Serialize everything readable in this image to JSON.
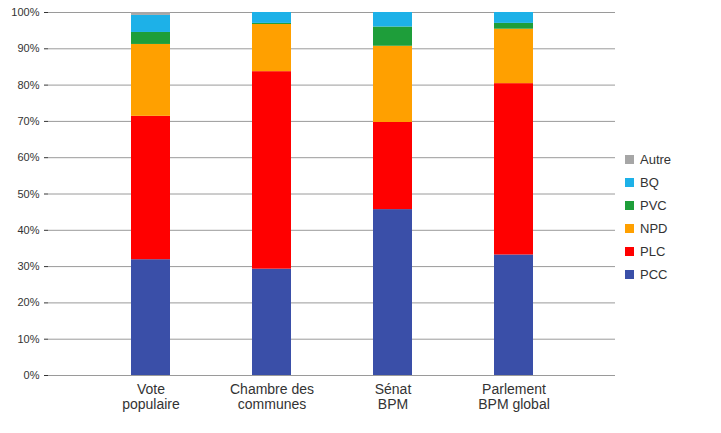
{
  "chart_data": {
    "type": "bar",
    "stacked": true,
    "categories": [
      "Vote\npopulaire",
      "Chambre des\ncommunes",
      "Sénat\nBPM",
      "Parlement\nBPM global"
    ],
    "series": [
      {
        "name": "PCC",
        "color": "#3a4fa8",
        "values": [
          31.9,
          29.3,
          45.7,
          33.2
        ]
      },
      {
        "name": "PLC",
        "color": "#ff0000",
        "values": [
          39.5,
          54.4,
          24.0,
          47.2
        ]
      },
      {
        "name": "NPD",
        "color": "#ffa000",
        "values": [
          19.8,
          13.0,
          21.0,
          15.0
        ]
      },
      {
        "name": "PVC",
        "color": "#1e9e3a",
        "values": [
          3.3,
          0.3,
          5.3,
          1.6
        ]
      },
      {
        "name": "BQ",
        "color": "#1db1e8",
        "values": [
          4.7,
          3.0,
          4.0,
          3.0
        ]
      },
      {
        "name": "Autre",
        "color": "#a6a6a6",
        "values": [
          0.8,
          0,
          0,
          0
        ]
      }
    ],
    "ylim": [
      0,
      100
    ],
    "yticks": [
      {
        "value": 0,
        "label": "0%"
      },
      {
        "value": 10,
        "label": "10%"
      },
      {
        "value": 20,
        "label": "20%"
      },
      {
        "value": 30,
        "label": "30%"
      },
      {
        "value": 40,
        "label": "40%"
      },
      {
        "value": 50,
        "label": "50%"
      },
      {
        "value": 60,
        "label": "60%"
      },
      {
        "value": 70,
        "label": "70%"
      },
      {
        "value": 80,
        "label": "80%"
      },
      {
        "value": 90,
        "label": "90%"
      },
      {
        "value": 100,
        "label": "100%"
      }
    ],
    "grid": true,
    "legend": "right"
  }
}
